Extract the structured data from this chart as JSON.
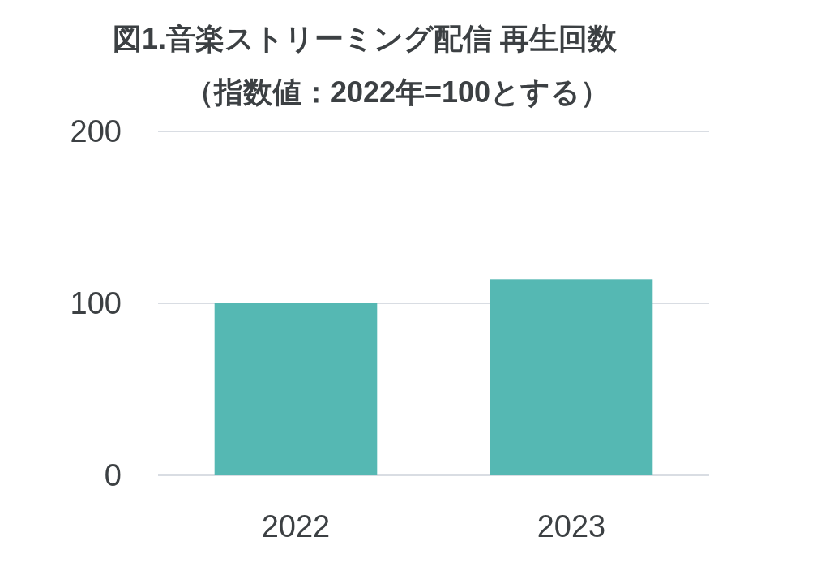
{
  "chart_data": {
    "type": "bar",
    "title": "図1.音楽ストリーミング配信 再生回数",
    "subtitle": "（指数値：2022年=100とする）",
    "categories": [
      "2022",
      "2023"
    ],
    "series": [
      {
        "color": "#55b8b3",
        "values": [
          100,
          114
        ]
      }
    ],
    "ylim": [
      0,
      200
    ],
    "yticks": [
      0,
      100,
      200
    ],
    "grid": "y"
  }
}
